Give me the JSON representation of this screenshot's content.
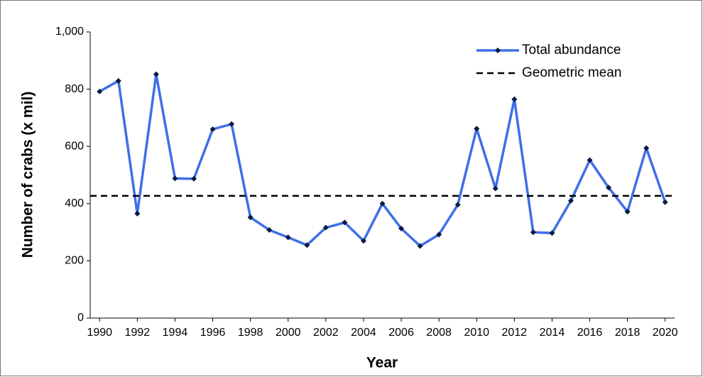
{
  "chart_data": {
    "type": "line",
    "x_label": "Year",
    "y_label": "Number of crabs (x mil)",
    "x": [
      1990,
      1991,
      1992,
      1993,
      1994,
      1995,
      1996,
      1997,
      1998,
      1999,
      2000,
      2001,
      2002,
      2003,
      2004,
      2005,
      2006,
      2007,
      2008,
      2009,
      2010,
      2011,
      2012,
      2013,
      2014,
      2015,
      2016,
      2017,
      2018,
      2019,
      2020
    ],
    "series": [
      {
        "name": "Total abundance",
        "color": "#3f6fe8",
        "marker_color": "#0a1a40",
        "values": [
          792,
          829,
          365,
          852,
          488,
          487,
          660,
          678,
          352,
          308,
          282,
          255,
          316,
          334,
          270,
          400,
          313,
          252,
          292,
          396,
          662,
          453,
          765,
          300,
          297,
          410,
          552,
          456,
          372,
          594,
          405
        ]
      },
      {
        "name": "Geometric mean",
        "color": "#000000",
        "dashed": true,
        "value": 427
      }
    ],
    "xlim": [
      1989.5,
      2020.5
    ],
    "xticks": [
      1990,
      1992,
      1994,
      1996,
      1998,
      2000,
      2002,
      2004,
      2006,
      2008,
      2010,
      2012,
      2014,
      2016,
      2018,
      2020
    ],
    "ylim": [
      0,
      1000
    ],
    "yticks": [
      0,
      200,
      400,
      600,
      800,
      {
        "value": 1000,
        "label": "1,000"
      }
    ],
    "grid": false,
    "legend": "top-right"
  }
}
